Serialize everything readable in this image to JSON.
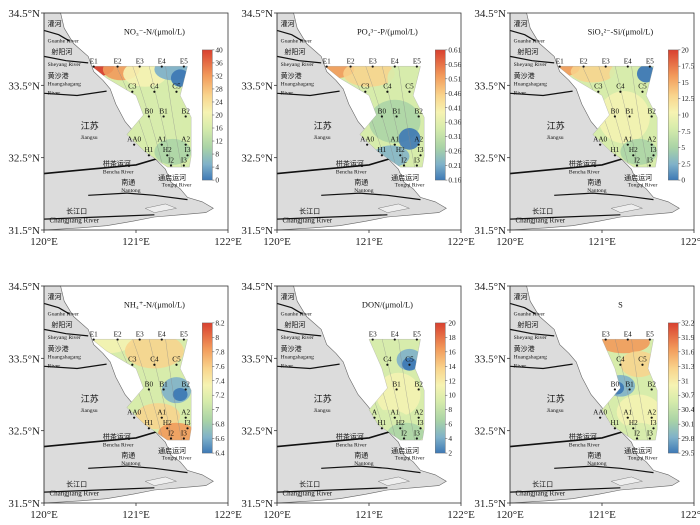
{
  "shared": {
    "x_ticks": [
      "120°E",
      "121°E",
      "122°E"
    ],
    "y_ticks": [
      "34.5°N",
      "33.5°N",
      "32.5°N",
      "31.5°N"
    ],
    "map_labels": {
      "guanhe_cn": "灌河",
      "guanhe_en": "Guanhe River",
      "sheyang_cn": "射阳河",
      "sheyang_en": "Sheyang River",
      "huangsha_cn": "黄沙港",
      "huangsha_en1": "Huangshagang",
      "huangsha_en2": "River",
      "jiangsu_cn": "江苏",
      "jiangsu_en": "Jiangsu",
      "bencha_cn": "栟茶运河",
      "bencha_en": "Bencha River",
      "tongqi_cn": "通启运河",
      "tongqi_en": "Tongqi River",
      "nantong_cn": "南通",
      "nantong_en": "Nantong",
      "changjiang_cn": "长江口",
      "changjiang_en": "Changjiang River"
    }
  },
  "chart_data": [
    {
      "type": "heatmap",
      "title": "NO₃⁻-N/(μmol/L)",
      "colorbar_ticks": [
        "40",
        "36",
        "32",
        "28",
        "24",
        "20",
        "16",
        "12",
        "8",
        "4",
        "0"
      ],
      "stations": [
        "E1",
        "E2",
        "E3",
        "E4",
        "E5",
        "C3",
        "C4",
        "C5",
        "B0",
        "B1",
        "B2",
        "AA0",
        "A1",
        "A2",
        "H1",
        "H2",
        "I3",
        "I2",
        "I3"
      ]
    },
    {
      "type": "heatmap",
      "title": "PO₄³⁻-P/(μmol/L)",
      "colorbar_ticks": [
        "0.61",
        "0.56",
        "0.51",
        "0.46",
        "0.41",
        "0.36",
        "0.31",
        "0.26",
        "0.21",
        "0.16"
      ],
      "stations": [
        "E1",
        "E2",
        "E3",
        "E4",
        "E5",
        "C3",
        "C4",
        "C5",
        "B0",
        "B1",
        "B2",
        "AA0",
        "A1",
        "A2",
        "H1",
        "H2",
        "I3",
        "I2",
        "I3"
      ]
    },
    {
      "type": "heatmap",
      "title": "SiO₃²⁻-Si/(μmol/L)",
      "colorbar_ticks": [
        "20",
        "17.5",
        "15",
        "12.5",
        "10",
        "7.5",
        "5",
        "2.5",
        "0"
      ],
      "stations": [
        "E1",
        "E2",
        "E3",
        "E4",
        "E5",
        "C3",
        "C4",
        "C5",
        "B0",
        "B1",
        "B2",
        "AA0",
        "A1",
        "A2",
        "H1",
        "H2",
        "I3",
        "I2",
        "I3"
      ]
    },
    {
      "type": "heatmap",
      "title": "NH₄⁺-N/(μmol/L)",
      "colorbar_ticks": [
        "8.2",
        "8",
        "7.8",
        "7.6",
        "7.4",
        "7.2",
        "7",
        "6.8",
        "6.6",
        "6.4"
      ],
      "stations": [
        "E1",
        "E2",
        "E3",
        "E4",
        "E5",
        "C3",
        "C4",
        "C5",
        "B0",
        "B1",
        "B2",
        "AA0",
        "A1",
        "A2",
        "H1",
        "H2",
        "I3",
        "I2",
        "I3"
      ]
    },
    {
      "type": "heatmap",
      "title": "DON/(μmol/L)",
      "colorbar_ticks": [
        "20",
        "18",
        "16",
        "14",
        "12",
        "10",
        "8",
        "6",
        "4",
        "2"
      ],
      "stations": [
        "E3",
        "E4",
        "E5",
        "C4",
        "C5",
        "B1",
        "B2",
        "A",
        "A1",
        "A2",
        "H1",
        "H2",
        "I3",
        "I2",
        "I3"
      ]
    },
    {
      "type": "heatmap",
      "title": "S",
      "colorbar_ticks": [
        "32.2",
        "31.9",
        "31.6",
        "31.3",
        "31",
        "30.7",
        "30.4",
        "30.1",
        "29.8",
        "29.5"
      ],
      "stations": [
        "E3",
        "E4",
        "E5",
        "C4",
        "C5",
        "B0",
        "B1",
        "B2",
        "AA0",
        "A1",
        "A2",
        "H1",
        "H2",
        "I3",
        "I2",
        "I3"
      ]
    }
  ]
}
